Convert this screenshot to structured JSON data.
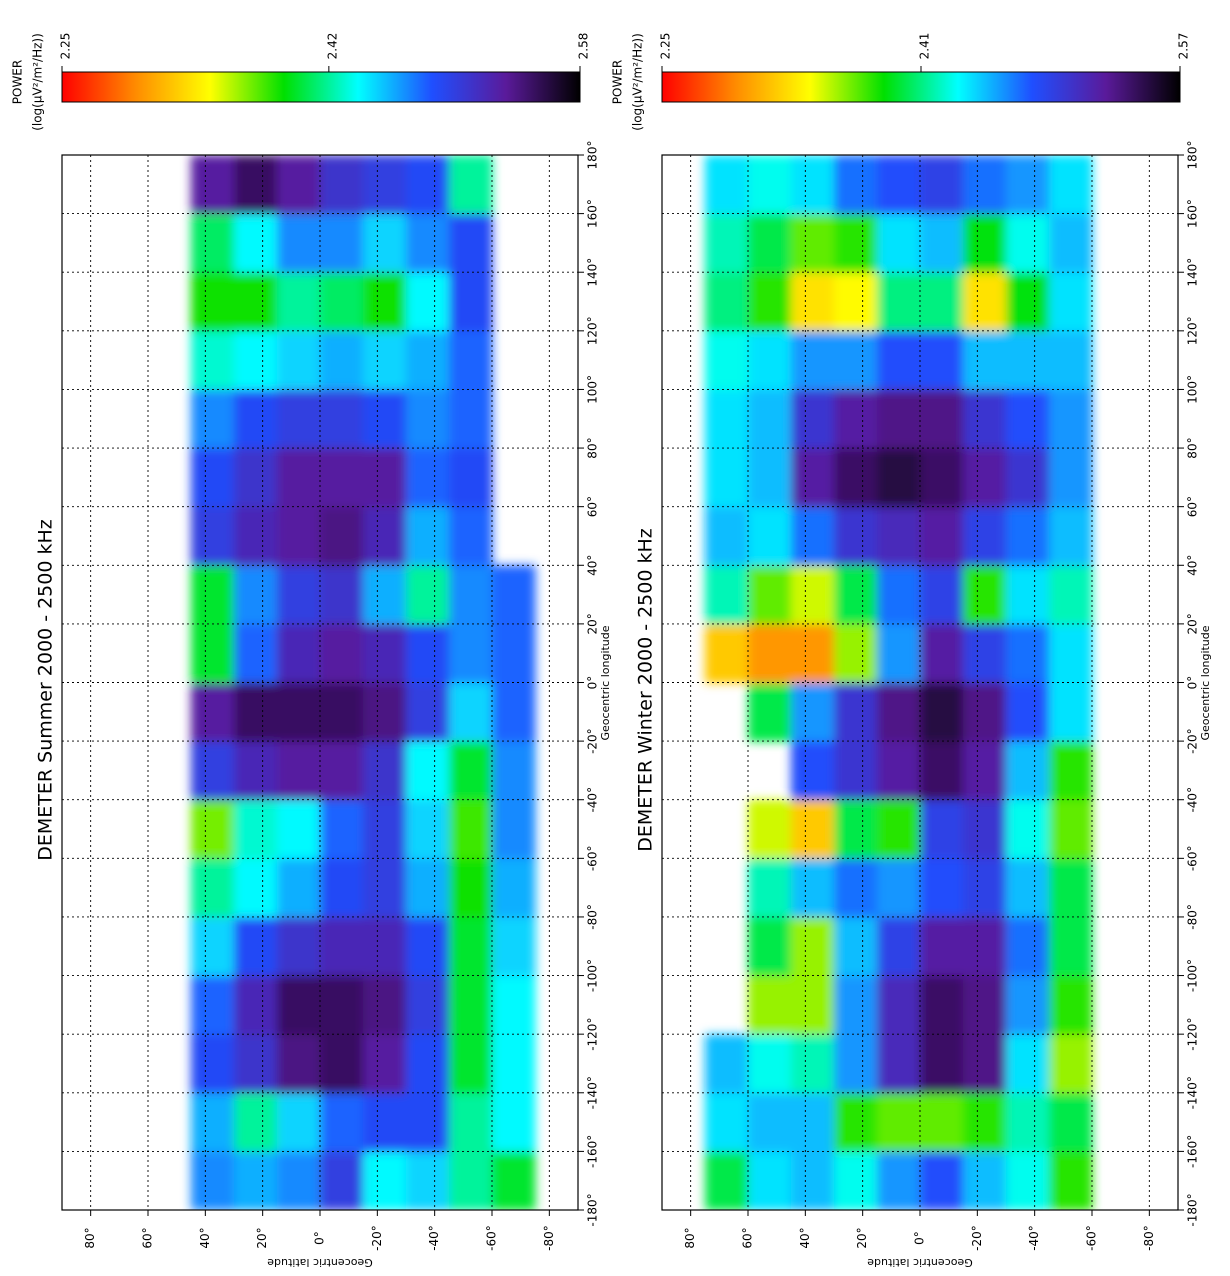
{
  "chart_data": [
    {
      "type": "heatmap",
      "title": "DEMETER Summer 2000 - 2500 kHz",
      "colorbar_title": "POWER",
      "colorbar_units": "(log(µV²/m²/Hz))",
      "xlabel": "Geocentric longitude",
      "ylabel": "Geocentric latitude",
      "xlim": [
        -180,
        180
      ],
      "ylim": [
        -90,
        90
      ],
      "xticks": [
        {
          "value": -180,
          "label": "-180°"
        },
        {
          "value": -160,
          "label": "-160°"
        },
        {
          "value": -140,
          "label": "-140°"
        },
        {
          "value": -120,
          "label": "-120°"
        },
        {
          "value": -100,
          "label": "-100°"
        },
        {
          "value": -80,
          "label": "-80°"
        },
        {
          "value": -60,
          "label": "-60°"
        },
        {
          "value": -40,
          "label": "-40°"
        },
        {
          "value": -20,
          "label": "-20°"
        },
        {
          "value": 0,
          "label": "0°"
        },
        {
          "value": 20,
          "label": "20°"
        },
        {
          "value": 40,
          "label": "40°"
        },
        {
          "value": 60,
          "label": "60°"
        },
        {
          "value": 80,
          "label": "80°"
        },
        {
          "value": 100,
          "label": "100°"
        },
        {
          "value": 120,
          "label": "120°"
        },
        {
          "value": 140,
          "label": "140°"
        },
        {
          "value": 160,
          "label": "160°"
        },
        {
          "value": 180,
          "label": "180°"
        }
      ],
      "yticks": [
        {
          "value": 80,
          "label": "80°"
        },
        {
          "value": 60,
          "label": "60°"
        },
        {
          "value": 40,
          "label": "40°"
        },
        {
          "value": 20,
          "label": "20°"
        },
        {
          "value": 0,
          "label": "0°"
        },
        {
          "value": -20,
          "label": "-20°"
        },
        {
          "value": -40,
          "label": "-40°"
        },
        {
          "value": -60,
          "label": "-60°"
        },
        {
          "value": -80,
          "label": "-80°"
        }
      ],
      "grid": true,
      "x_bins": [
        -180,
        -160,
        -140,
        -120,
        -100,
        -80,
        -60,
        -40,
        -20,
        0,
        20,
        40,
        60,
        80,
        100,
        120,
        140,
        160,
        180
      ],
      "y_bins": [
        90,
        75,
        60,
        45,
        30,
        15,
        0,
        -15,
        -30,
        -45,
        -60,
        -75,
        -90
      ],
      "clim": [
        2.25,
        2.58
      ],
      "cticks": [
        2.25,
        2.42,
        2.58
      ],
      "colormap": [
        "#ff0000",
        "#ff8c00",
        "#ffff00",
        "#00e000",
        "#00ffff",
        "#1f4fff",
        "#5a1a9a",
        "#000000"
      ],
      "values": [
        [
          null,
          null,
          null,
          null,
          null,
          null,
          null,
          null,
          null,
          null,
          null,
          null,
          null,
          null,
          null,
          null,
          null,
          null
        ],
        [
          null,
          null,
          null,
          null,
          null,
          null,
          null,
          null,
          null,
          null,
          null,
          null,
          null,
          null,
          null,
          null,
          null,
          null
        ],
        [
          null,
          null,
          null,
          null,
          null,
          null,
          null,
          null,
          null,
          null,
          null,
          null,
          null,
          null,
          null,
          null,
          null,
          null
        ],
        [
          2.47,
          2.46,
          2.49,
          2.48,
          2.45,
          2.42,
          2.37,
          2.5,
          2.53,
          2.4,
          2.4,
          2.5,
          2.49,
          2.47,
          2.43,
          2.39,
          2.41,
          2.53
        ],
        [
          2.46,
          2.42,
          2.51,
          2.52,
          2.49,
          2.44,
          2.43,
          2.52,
          2.55,
          2.48,
          2.47,
          2.52,
          2.51,
          2.49,
          2.44,
          2.39,
          2.44,
          2.55
        ],
        [
          2.47,
          2.45,
          2.54,
          2.55,
          2.51,
          2.46,
          2.44,
          2.53,
          2.55,
          2.52,
          2.5,
          2.53,
          2.53,
          2.5,
          2.45,
          2.42,
          2.47,
          2.53
        ],
        [
          2.5,
          2.48,
          2.55,
          2.55,
          2.52,
          2.49,
          2.48,
          2.53,
          2.55,
          2.53,
          2.51,
          2.54,
          2.53,
          2.5,
          2.46,
          2.41,
          2.47,
          2.51
        ],
        [
          2.44,
          2.49,
          2.53,
          2.54,
          2.52,
          2.5,
          2.5,
          2.51,
          2.54,
          2.52,
          2.46,
          2.52,
          2.53,
          2.49,
          2.45,
          2.39,
          2.45,
          2.5
        ],
        [
          2.45,
          2.49,
          2.49,
          2.5,
          2.49,
          2.46,
          2.45,
          2.44,
          2.5,
          2.49,
          2.42,
          2.46,
          2.48,
          2.47,
          2.46,
          2.44,
          2.47,
          2.49
        ],
        [
          2.42,
          2.42,
          2.4,
          2.4,
          2.4,
          2.39,
          2.38,
          2.4,
          2.45,
          2.47,
          2.47,
          2.48,
          2.49,
          2.48,
          2.48,
          2.49,
          2.49,
          2.42
        ],
        [
          2.4,
          2.44,
          2.44,
          2.44,
          2.45,
          2.46,
          2.47,
          2.47,
          2.48,
          2.48,
          2.48,
          null,
          null,
          null,
          null,
          null,
          null,
          null
        ],
        [
          null,
          null,
          null,
          null,
          null,
          null,
          null,
          null,
          null,
          null,
          null,
          null,
          null,
          null,
          null,
          null,
          null,
          null
        ]
      ]
    },
    {
      "type": "heatmap",
      "title": "DEMETER Winter 2000 - 2500 kHz",
      "colorbar_title": "POWER",
      "colorbar_units": "(log(µV²/m²/Hz))",
      "xlabel": "Geocentric longitude",
      "ylabel": "Geocentric latitude",
      "xlim": [
        -180,
        180
      ],
      "ylim": [
        -90,
        90
      ],
      "xticks": [
        {
          "value": -180,
          "label": "-180°"
        },
        {
          "value": -160,
          "label": "-160°"
        },
        {
          "value": -140,
          "label": "-140°"
        },
        {
          "value": -120,
          "label": "-120°"
        },
        {
          "value": -100,
          "label": "-100°"
        },
        {
          "value": -80,
          "label": "-80°"
        },
        {
          "value": -60,
          "label": "-60°"
        },
        {
          "value": -40,
          "label": "-40°"
        },
        {
          "value": -20,
          "label": "-20°"
        },
        {
          "value": 0,
          "label": "0°"
        },
        {
          "value": 20,
          "label": "20°"
        },
        {
          "value": 40,
          "label": "40°"
        },
        {
          "value": 60,
          "label": "60°"
        },
        {
          "value": 80,
          "label": "80°"
        },
        {
          "value": 100,
          "label": "100°"
        },
        {
          "value": 120,
          "label": "120°"
        },
        {
          "value": 140,
          "label": "140°"
        },
        {
          "value": 160,
          "label": "160°"
        },
        {
          "value": 180,
          "label": "180°"
        }
      ],
      "yticks": [
        {
          "value": 80,
          "label": "80°"
        },
        {
          "value": 60,
          "label": "60°"
        },
        {
          "value": 40,
          "label": "40°"
        },
        {
          "value": 20,
          "label": "20°"
        },
        {
          "value": 0,
          "label": "0°"
        },
        {
          "value": -20,
          "label": "-20°"
        },
        {
          "value": -40,
          "label": "-40°"
        },
        {
          "value": -60,
          "label": "-60°"
        },
        {
          "value": -80,
          "label": "-80°"
        }
      ],
      "grid": true,
      "x_bins": [
        -180,
        -160,
        -140,
        -120,
        -100,
        -80,
        -60,
        -40,
        -20,
        0,
        20,
        40,
        60,
        80,
        100,
        120,
        140,
        160,
        180
      ],
      "y_bins": [
        90,
        75,
        60,
        45,
        30,
        15,
        0,
        -15,
        -30,
        -45,
        -60,
        -75,
        -90
      ],
      "clim": [
        2.25,
        2.57
      ],
      "cticks": [
        2.25,
        2.41,
        2.57
      ],
      "colormap": [
        "#ff0000",
        "#ff8c00",
        "#ffff00",
        "#00e000",
        "#00ffff",
        "#1f4fff",
        "#5a1a9a",
        "#000000"
      ],
      "values": [
        [
          null,
          null,
          null,
          null,
          null,
          null,
          null,
          null,
          null,
          null,
          null,
          null,
          null,
          null,
          null,
          null,
          null,
          null
        ],
        [
          2.4,
          2.44,
          2.45,
          null,
          null,
          null,
          null,
          null,
          null,
          2.32,
          2.42,
          2.45,
          2.44,
          2.44,
          2.43,
          2.41,
          2.42,
          2.44
        ],
        [
          2.44,
          2.45,
          2.43,
          2.36,
          2.4,
          2.42,
          2.35,
          null,
          2.4,
          2.3,
          2.37,
          2.44,
          2.45,
          2.45,
          2.44,
          2.38,
          2.4,
          2.43
        ],
        [
          2.45,
          2.45,
          2.42,
          2.36,
          2.36,
          2.45,
          2.32,
          2.48,
          2.46,
          2.3,
          2.35,
          2.47,
          2.52,
          2.5,
          2.46,
          2.33,
          2.37,
          2.44
        ],
        [
          2.43,
          2.38,
          2.46,
          2.46,
          2.45,
          2.47,
          2.4,
          2.5,
          2.5,
          2.36,
          2.4,
          2.5,
          2.54,
          2.52,
          2.46,
          2.34,
          2.38,
          2.47
        ],
        [
          2.46,
          2.37,
          2.51,
          2.51,
          2.49,
          2.46,
          2.38,
          2.52,
          2.53,
          2.46,
          2.47,
          2.51,
          2.55,
          2.53,
          2.48,
          2.41,
          2.44,
          2.48
        ],
        [
          2.48,
          2.37,
          2.54,
          2.54,
          2.52,
          2.48,
          2.49,
          2.54,
          2.55,
          2.52,
          2.49,
          2.52,
          2.54,
          2.53,
          2.48,
          2.41,
          2.45,
          2.49
        ],
        [
          2.45,
          2.38,
          2.53,
          2.53,
          2.52,
          2.49,
          2.5,
          2.52,
          2.53,
          2.49,
          2.38,
          2.49,
          2.52,
          2.5,
          2.45,
          2.33,
          2.39,
          2.47
        ],
        [
          2.43,
          2.42,
          2.44,
          2.46,
          2.47,
          2.45,
          2.43,
          2.45,
          2.48,
          2.47,
          2.44,
          2.47,
          2.5,
          2.48,
          2.45,
          2.39,
          2.43,
          2.46
        ],
        [
          2.38,
          2.4,
          2.36,
          2.38,
          2.4,
          2.4,
          2.37,
          2.38,
          2.44,
          2.44,
          2.42,
          2.45,
          2.46,
          2.46,
          2.45,
          2.44,
          2.45,
          2.44
        ],
        [
          null,
          null,
          null,
          null,
          null,
          null,
          null,
          null,
          null,
          null,
          null,
          null,
          null,
          null,
          null,
          null,
          null,
          null
        ],
        [
          null,
          null,
          null,
          null,
          null,
          null,
          null,
          null,
          null,
          null,
          null,
          null,
          null,
          null,
          null,
          null,
          null,
          null
        ]
      ]
    }
  ]
}
